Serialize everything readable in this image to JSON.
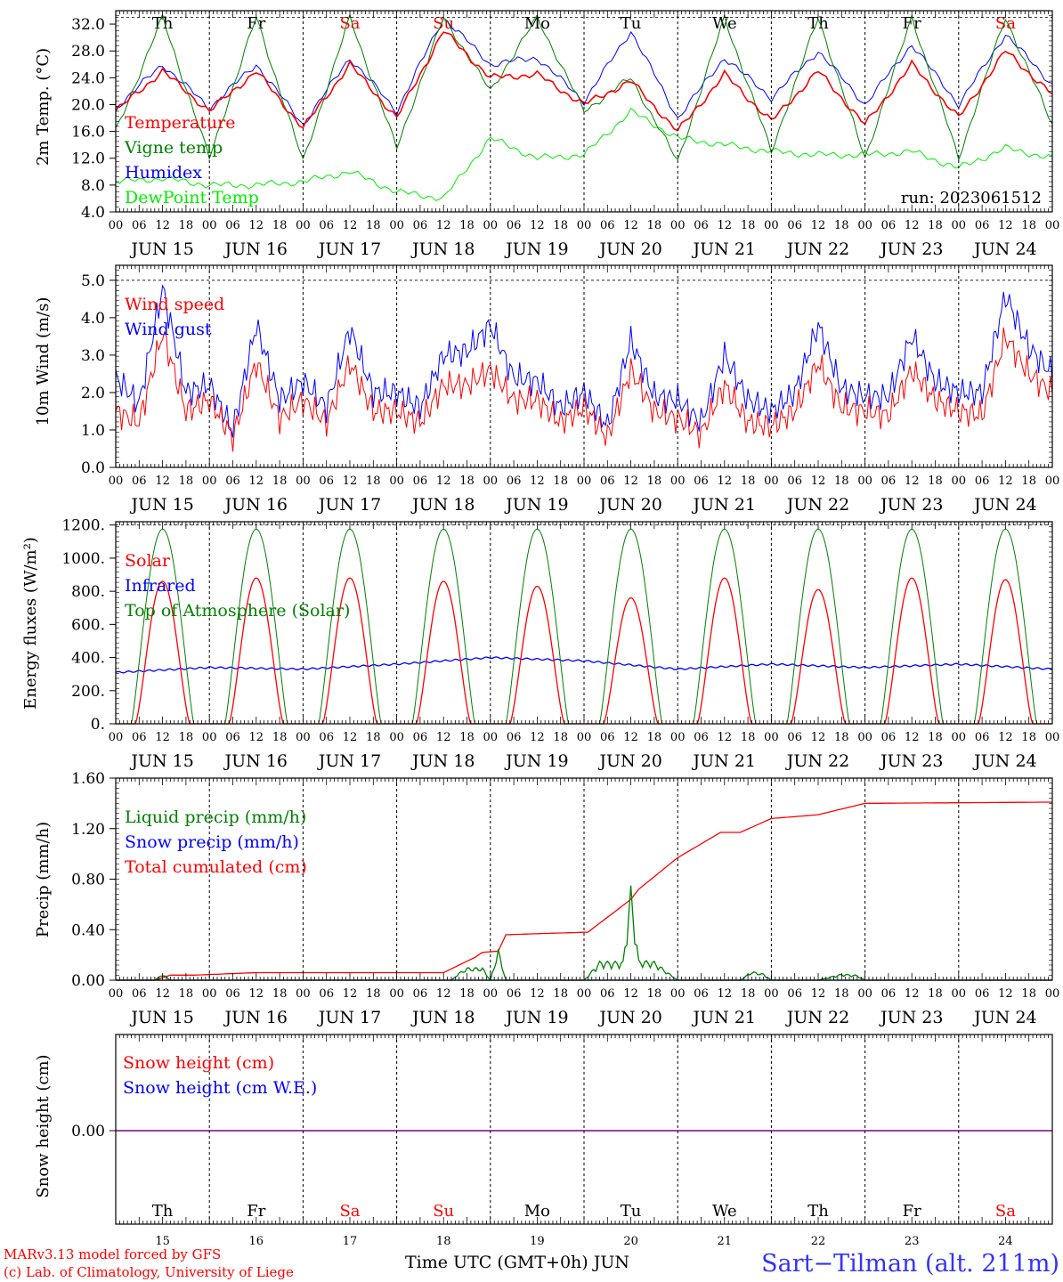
{
  "days": [
    "JUN 15",
    "JUN 16",
    "JUN 17",
    "JUN 18",
    "JUN 19",
    "JUN 20",
    "JUN 21",
    "JUN 22",
    "JUN 23",
    "JUN 24"
  ],
  "weekdays": [
    "Th",
    "Fr",
    "Sa",
    "Su",
    "Mo",
    "Tu",
    "We",
    "Th",
    "Fr",
    "Sa"
  ],
  "day_numbers": [
    "15",
    "16",
    "17",
    "18",
    "19",
    "20",
    "21",
    "22",
    "23",
    "24"
  ],
  "hour_ticks": [
    "00",
    "06",
    "12",
    "18"
  ],
  "run_label": "run: 2023061512",
  "footer": {
    "model": "MARv3.13 model forced by GFS",
    "copyright": "(c) Lab. of Climatology, University of Liege",
    "xlabel": "Time UTC (GMT+0h) JUN",
    "station": "Sart−Tilman (alt. 211m)"
  },
  "colors": {
    "red": "#ff0000",
    "green": "#008000",
    "blue": "#0000ff",
    "light_green": "#00ee00",
    "purple": "#800080",
    "weekend": "#ff0000",
    "station": "#3333ff"
  },
  "chart_data": [
    {
      "type": "line",
      "ylabel": "2m Temp. (°C)",
      "ylim": [
        4,
        34
      ],
      "yticks": [
        "4.0",
        "8.0",
        "12.0",
        "16.0",
        "20.0",
        "24.0",
        "28.0",
        "32.0"
      ],
      "hours": [
        0,
        12,
        24,
        36,
        48,
        60,
        72,
        84,
        96,
        108,
        120,
        132,
        144,
        156,
        168,
        180,
        192,
        204,
        216,
        228,
        240
      ],
      "series": [
        {
          "name": "Temperature",
          "color": "#ff0000",
          "values": [
            19,
            25,
            19,
            25,
            16.5,
            26,
            18,
            31,
            24,
            24.5,
            20,
            23.5,
            16,
            24.5,
            17.5,
            25,
            17,
            26,
            18,
            28,
            21.5
          ]
        },
        {
          "name": "Vigne temp",
          "color": "#008000",
          "values": [
            16,
            33,
            12,
            33,
            11.5,
            33,
            13.5,
            33,
            22,
            33,
            19,
            24,
            11.5,
            33,
            13,
            33,
            12,
            33,
            12,
            33,
            17
          ]
        },
        {
          "name": "Humidex",
          "color": "#0000ff",
          "values": [
            19.5,
            26,
            19.5,
            26,
            17,
            27,
            19,
            33,
            26,
            27,
            20.5,
            31,
            18,
            27,
            21,
            28,
            20,
            29,
            20,
            30.5,
            23
          ]
        },
        {
          "name": "DewPoint Temp",
          "color": "#00ee00",
          "values": [
            8.5,
            9,
            8,
            8,
            8.5,
            10,
            7,
            6,
            15,
            12,
            12.5,
            19,
            15,
            14,
            13,
            12.5,
            12.5,
            13,
            10.5,
            13.5,
            12
          ]
        }
      ]
    },
    {
      "type": "line",
      "ylabel": "10m Wind (m/s)",
      "ylim": [
        0,
        5.4
      ],
      "yticks": [
        "0.0",
        "1.0",
        "2.0",
        "3.0",
        "4.0",
        "5.0"
      ],
      "hours": [
        0,
        6,
        12,
        18,
        24,
        30,
        36,
        42,
        48,
        54,
        60,
        66,
        72,
        78,
        84,
        90,
        96,
        102,
        108,
        114,
        120,
        126,
        132,
        138,
        144,
        150,
        156,
        162,
        168,
        174,
        180,
        186,
        192,
        198,
        204,
        210,
        216,
        222,
        228,
        234,
        240
      ],
      "series": [
        {
          "name": "Wind speed",
          "color": "#ff0000",
          "values": [
            1.5,
            1.2,
            3.6,
            1.5,
            1.8,
            0.8,
            2.8,
            1.3,
            1.8,
            1.2,
            2.8,
            1.5,
            1.5,
            1.2,
            2.2,
            2.2,
            2.6,
            1.8,
            1.8,
            1.2,
            1.6,
            0.8,
            2.6,
            1.5,
            1.3,
            0.9,
            2.2,
            1.2,
            1.1,
            1.5,
            2.8,
            1.6,
            1.5,
            1.4,
            2.6,
            1.8,
            1.5,
            1.4,
            3.5,
            2.5,
            2.0
          ]
        },
        {
          "name": "Wind gust",
          "color": "#0000ff",
          "values": [
            2.4,
            1.7,
            4.8,
            2.0,
            2.2,
            1.0,
            3.8,
            1.8,
            2.3,
            1.6,
            3.7,
            2.0,
            2.0,
            1.6,
            3.0,
            3.1,
            3.8,
            2.4,
            2.3,
            1.6,
            2.0,
            1.1,
            3.4,
            1.9,
            1.8,
            1.2,
            3.0,
            1.8,
            1.5,
            2.0,
            3.8,
            2.1,
            1.9,
            1.9,
            3.5,
            2.3,
            2.0,
            2.0,
            4.6,
            3.2,
            2.5
          ]
        }
      ]
    },
    {
      "type": "line",
      "ylabel": "Energy fluxes (W/m²)",
      "ylim": [
        0,
        1220
      ],
      "yticks": [
        "0.",
        "200.",
        "400.",
        "600.",
        "800.",
        "1000.",
        "1200."
      ],
      "daily_peaks": [
        {
          "name": "Solar",
          "color": "#ff0000",
          "values": [
            860,
            880,
            880,
            860,
            830,
            760,
            880,
            810,
            880,
            870
          ]
        },
        {
          "name": "Top of Atmosphere (Solar)",
          "color": "#008000",
          "values": [
            1175,
            1175,
            1175,
            1175,
            1175,
            1175,
            1175,
            1175,
            1175,
            1175
          ]
        }
      ],
      "series": [
        {
          "name": "Infrared",
          "color": "#0000ff",
          "hours": [
            0,
            24,
            48,
            72,
            96,
            120,
            144,
            168,
            192,
            216,
            240
          ],
          "values": [
            310,
            340,
            330,
            360,
            400,
            380,
            330,
            360,
            340,
            360,
            330
          ]
        }
      ]
    },
    {
      "type": "line",
      "ylabel": "Precip (mm/h)",
      "ylim": [
        0,
        1.6
      ],
      "yticks": [
        "0.00",
        "0.40",
        "0.80",
        "1.20",
        "1.60"
      ],
      "series": [
        {
          "name": "Liquid precip (mm/h)",
          "color": "#008000",
          "hours": [
            0,
            10,
            12,
            14,
            86,
            88,
            90,
            94,
            96,
            98,
            100,
            120,
            124,
            130,
            132,
            134,
            138,
            144,
            160,
            163,
            166,
            168,
            180,
            186,
            190,
            192,
            240
          ],
          "values": [
            0,
            0,
            0.05,
            0,
            0,
            0.06,
            0.1,
            0.1,
            0,
            0.25,
            0,
            0,
            0.15,
            0.15,
            0.75,
            0.16,
            0.15,
            0,
            0,
            0.07,
            0.05,
            0,
            0,
            0.05,
            0.04,
            0,
            0
          ]
        },
        {
          "name": "Snow precip (mm/h)",
          "color": "#0000ff",
          "hours": [
            0,
            240
          ],
          "values": [
            0,
            0
          ]
        },
        {
          "name": "Total cumulated (cm)",
          "color": "#ff0000",
          "hours": [
            0,
            10,
            14,
            20,
            36,
            60,
            84,
            88,
            92,
            94,
            98,
            100,
            110,
            121,
            132,
            134,
            144,
            155,
            160,
            168,
            180,
            188,
            192,
            240
          ],
          "values": [
            0,
            0,
            0.04,
            0.04,
            0.06,
            0.06,
            0.06,
            0.12,
            0.18,
            0.22,
            0.23,
            0.36,
            0.37,
            0.38,
            0.64,
            0.72,
            0.97,
            1.17,
            1.17,
            1.28,
            1.31,
            1.37,
            1.4,
            1.41
          ]
        }
      ]
    },
    {
      "type": "line",
      "ylabel": "Snow height (cm)",
      "yticks": [
        "0.00"
      ],
      "series": [
        {
          "name": "Snow height (cm)",
          "color": "#ff0000",
          "values": [
            0,
            0
          ]
        },
        {
          "name": "Snow height (cm W.E.)",
          "color": "#0000ff",
          "values": [
            0,
            0
          ]
        }
      ]
    }
  ]
}
